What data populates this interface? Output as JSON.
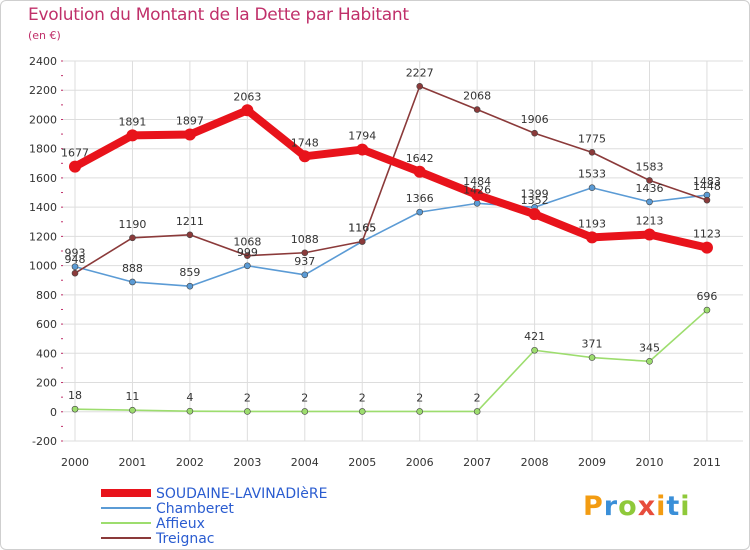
{
  "chart_data": {
    "type": "line",
    "title": "Evolution du Montant de la Dette par Habitant",
    "subtitle": "(en €)",
    "x": [
      "2000",
      "2001",
      "2002",
      "2003",
      "2004",
      "2005",
      "2006",
      "2007",
      "2008",
      "2009",
      "2010",
      "2011"
    ],
    "ylim": [
      -200,
      2400
    ],
    "yticks": [
      -200,
      0,
      200,
      400,
      600,
      800,
      1000,
      1200,
      1400,
      1600,
      1800,
      2000,
      2200,
      2400
    ],
    "grid": true,
    "legend_position": "bottom-left",
    "series": [
      {
        "name": "SOUDAINE-LAVINADIèRE",
        "color": "#e8131b",
        "values": [
          1677,
          1891,
          1897,
          2063,
          1748,
          1794,
          1642,
          1484,
          1352,
          1193,
          1213,
          1123
        ]
      },
      {
        "name": "Chamberet",
        "color": "#5b9bd5",
        "values": [
          993,
          888,
          859,
          999,
          937,
          1165,
          1366,
          1426,
          1399,
          1533,
          1436,
          1483
        ]
      },
      {
        "name": "Affieux",
        "color": "#9ddd6e",
        "values": [
          18,
          11,
          4,
          2,
          2,
          2,
          2,
          2,
          421,
          371,
          345,
          696
        ]
      },
      {
        "name": "Treignac",
        "color": "#8b3a3a",
        "values": [
          948,
          1190,
          1211,
          1068,
          1088,
          1165,
          2227,
          2068,
          1906,
          1775,
          1583,
          1448
        ]
      }
    ]
  },
  "logo": {
    "text": "Proxiti",
    "colors": [
      "#f39c12",
      "#3a8fd8",
      "#8fc93a",
      "#e74c3c",
      "#f39c12",
      "#3a8fd8",
      "#8fc93a"
    ]
  }
}
